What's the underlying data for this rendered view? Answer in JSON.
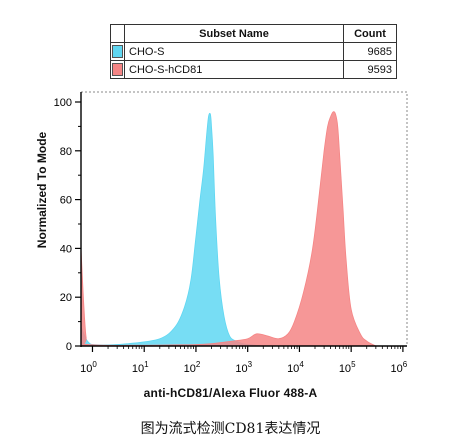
{
  "legend": {
    "header_name": "Subset Name",
    "header_count": "Count",
    "rows": [
      {
        "name": "CHO-S",
        "count": "9685",
        "color": "#5fd7f2"
      },
      {
        "name": "CHO-S-hCD81",
        "count": "9593",
        "color": "#f58585"
      }
    ]
  },
  "caption": "图为流式检测CD81表达情况",
  "chart_data": {
    "type": "area",
    "xlabel": "anti-hCD81/Alexa Fluor 488-A",
    "ylabel": "Normalized To Mode",
    "x_scale": "log",
    "xlim": [
      0.6,
      1200000
    ],
    "ylim": [
      0,
      100
    ],
    "x_ticks": [
      "10^0",
      "10^1",
      "10^2",
      "10^3",
      "10^4",
      "10^5",
      "10^6"
    ],
    "y_ticks": [
      "0",
      "20",
      "40",
      "60",
      "80",
      "100"
    ],
    "series": [
      {
        "name": "CHO-S",
        "color": "#5fd7f2",
        "x": [
          0.6,
          0.8,
          1.2,
          5,
          20,
          40,
          60,
          80,
          100,
          120,
          140,
          160,
          175,
          190,
          200,
          215,
          240,
          280,
          350,
          450,
          600,
          800,
          1200,
          2000
        ],
        "y": [
          8,
          2,
          0.5,
          1,
          3,
          8,
          16,
          27,
          45,
          60,
          72,
          86,
          94,
          95,
          90,
          78,
          52,
          28,
          12,
          4,
          2,
          1,
          0.5,
          0
        ]
      },
      {
        "name": "CHO-S-hCD81",
        "color": "#f58585",
        "x": [
          0.6,
          0.75,
          1,
          50,
          200,
          500,
          1000,
          1500,
          2500,
          4000,
          6000,
          8000,
          12000,
          18000,
          25000,
          30000,
          35000,
          40000,
          45000,
          50000,
          55000,
          60000,
          70000,
          80000,
          100000,
          150000,
          200000,
          300000
        ],
        "y": [
          40,
          4,
          0.5,
          0.5,
          1,
          2,
          3,
          5,
          4,
          3,
          5,
          10,
          22,
          40,
          65,
          80,
          90,
          94,
          96,
          95,
          90,
          78,
          55,
          35,
          15,
          5,
          2,
          0
        ]
      }
    ]
  }
}
